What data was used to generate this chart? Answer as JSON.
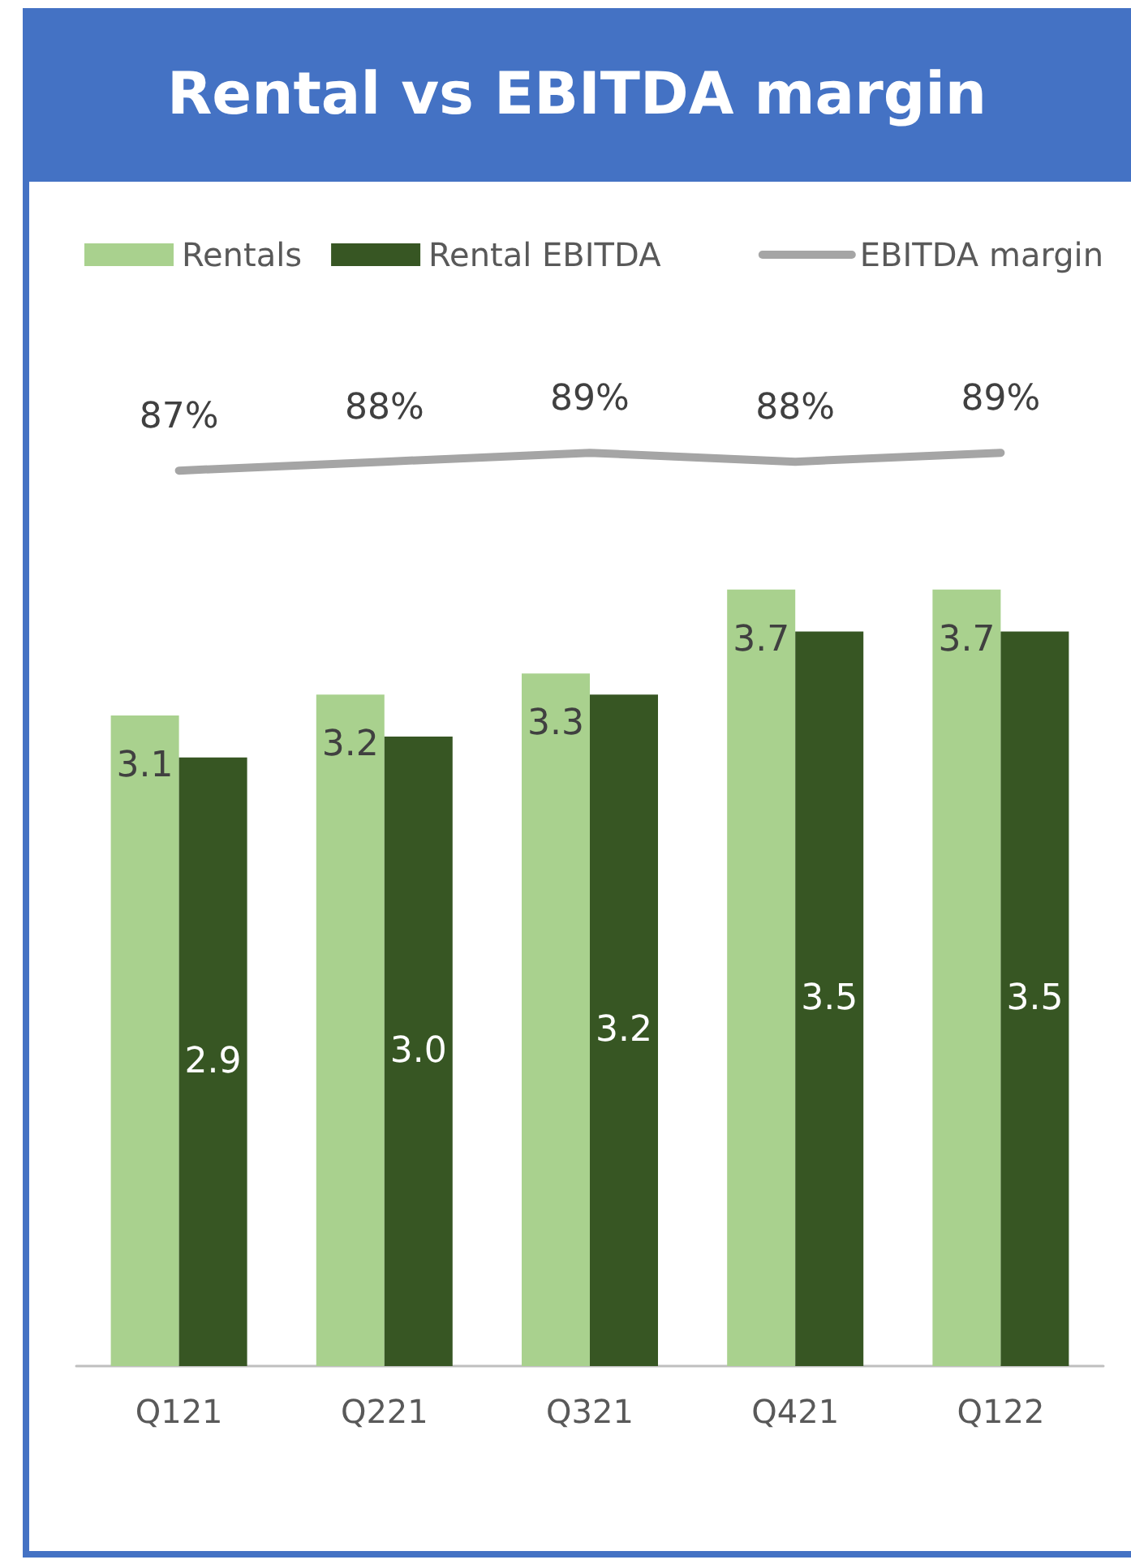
{
  "chart_data": [
    {
      "type": "line",
      "title": "Rental vs EBITDA margin",
      "categories": [
        null,
        null,
        null,
        null,
        null
      ],
      "series": [
        {
          "name": "EBITDA margin",
          "color": "#a5a5a5",
          "values": [
            87,
            88,
            89,
            88,
            89
          ],
          "value_labels": [
            "87%",
            "88%",
            "89%",
            "88%",
            "89%"
          ]
        }
      ],
      "data_labels": true,
      "legend": "top right",
      "grid": false,
      "tick_labels": false,
      "marker": "none",
      "line_style": "solid"
    },
    {
      "type": "bar",
      "categories": [
        "Q121",
        "Q221",
        "Q321",
        "Q421",
        "Q122"
      ],
      "series": [
        {
          "name": "Rentals",
          "color": "#a9d18e",
          "values": [
            3.1,
            3.2,
            3.3,
            3.7,
            3.7
          ]
        },
        {
          "name": "Rental EBITDA",
          "color": "#375623",
          "values": [
            2.9,
            3.0,
            3.2,
            3.5,
            3.5
          ],
          "value_labels": [
            "2.9",
            "3.0",
            "3.2",
            "3.5",
            "3.5"
          ]
        }
      ],
      "data_labels": true,
      "legend": "top left",
      "grid": false,
      "tick_labels": "x"
    }
  ]
}
